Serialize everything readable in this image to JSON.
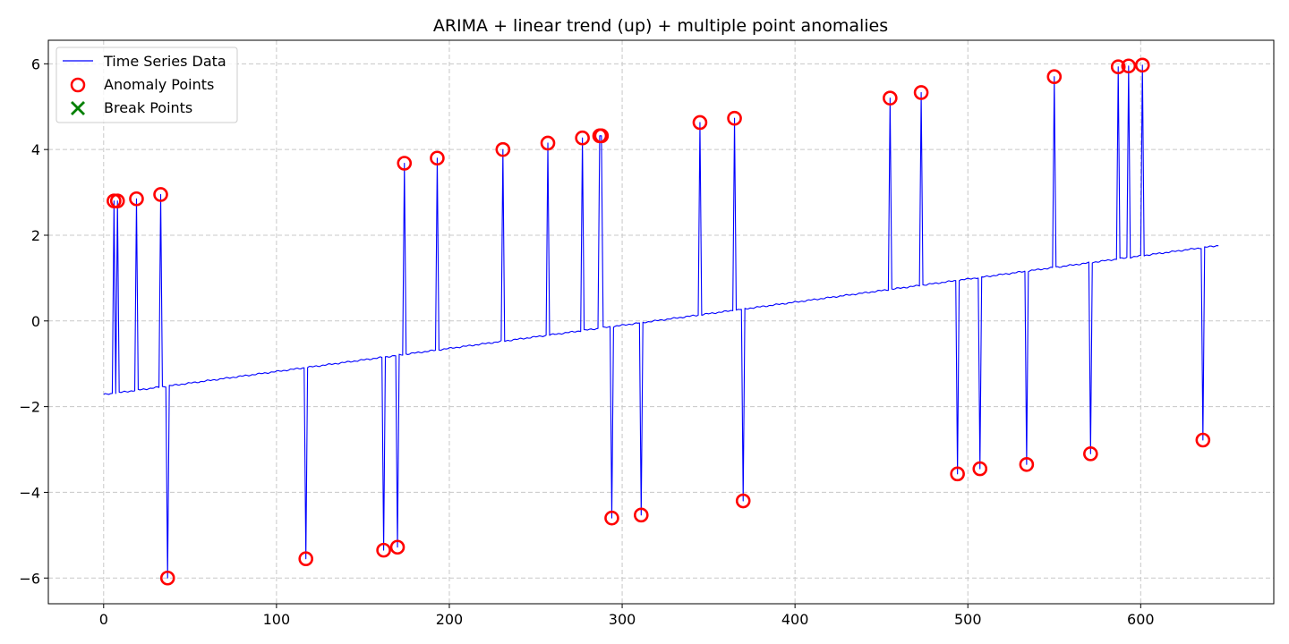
{
  "chart_data": {
    "type": "line",
    "title": "ARIMA + linear trend (up) + multiple point anomalies",
    "xlabel": "",
    "ylabel": "",
    "xlim": [
      -32,
      677
    ],
    "ylim": [
      -6.6,
      6.55
    ],
    "x_ticks": [
      0,
      100,
      200,
      300,
      400,
      500,
      600
    ],
    "y_ticks": [
      -6,
      -4,
      -2,
      0,
      2,
      4,
      6
    ],
    "x_tick_labels": [
      "0",
      "100",
      "200",
      "300",
      "400",
      "500",
      "600"
    ],
    "y_tick_labels": [
      "−6",
      "−4",
      "−2",
      "0",
      "2",
      "4",
      "6"
    ],
    "grid": true,
    "legend_position": "top-left",
    "colors": {
      "series_line": "#0000ff",
      "anomaly_marker": "#ff0000",
      "break_marker": "#008000",
      "grid": "#c8c8c8"
    },
    "baseline": {
      "x_start": 0,
      "x_end": 645,
      "y_start": -1.72,
      "y_end": 1.76
    },
    "series": [
      {
        "name": "Time Series Data",
        "style": "line",
        "color": "#0000ff"
      },
      {
        "name": "Anomaly Points",
        "style": "open-circle",
        "color": "#ff0000",
        "points": [
          [
            6,
            2.8
          ],
          [
            8,
            2.8
          ],
          [
            19,
            2.85
          ],
          [
            33,
            2.95
          ],
          [
            37,
            -6.0
          ],
          [
            117,
            -5.55
          ],
          [
            162,
            -5.35
          ],
          [
            170,
            -5.28
          ],
          [
            174,
            3.68
          ],
          [
            193,
            3.8
          ],
          [
            231,
            4.0
          ],
          [
            257,
            4.15
          ],
          [
            277,
            4.27
          ],
          [
            287,
            4.32
          ],
          [
            288,
            4.32
          ],
          [
            294,
            -4.6
          ],
          [
            311,
            -4.53
          ],
          [
            345,
            4.63
          ],
          [
            365,
            4.73
          ],
          [
            370,
            -4.2
          ],
          [
            455,
            5.2
          ],
          [
            473,
            5.33
          ],
          [
            494,
            -3.57
          ],
          [
            507,
            -3.45
          ],
          [
            534,
            -3.35
          ],
          [
            550,
            5.7
          ],
          [
            571,
            -3.1
          ],
          [
            587,
            5.93
          ],
          [
            593,
            5.95
          ],
          [
            601,
            5.97
          ],
          [
            636,
            -2.78
          ]
        ]
      },
      {
        "name": "Break Points",
        "style": "x-marker",
        "color": "#008000",
        "points": []
      }
    ]
  }
}
